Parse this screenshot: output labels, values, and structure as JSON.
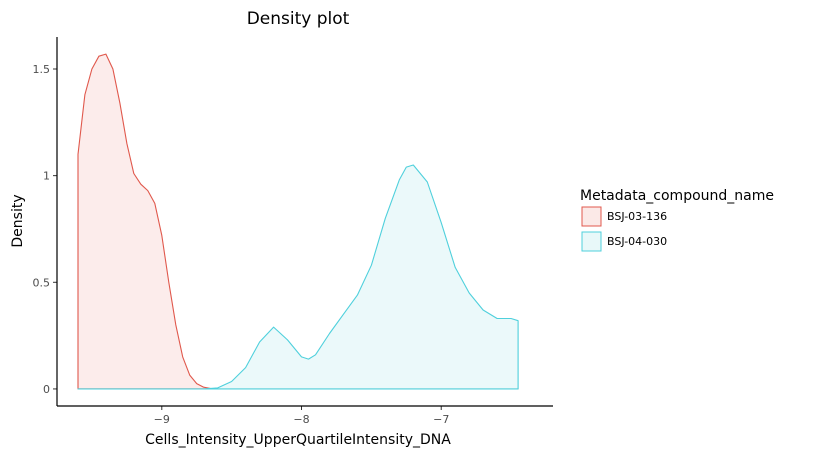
{
  "chart_data": {
    "type": "area",
    "title": "Density plot",
    "xlabel": "Cells_Intensity_UpperQuartileIntensity_DNA",
    "ylabel": "Density",
    "xlim": [
      -9.75,
      -6.2
    ],
    "ylim": [
      -0.08,
      1.65
    ],
    "x_ticks": [
      -9,
      -8,
      -7
    ],
    "x_tick_labels": [
      "−9",
      "−8",
      "−7"
    ],
    "y_ticks": [
      0,
      0.5,
      1,
      1.5
    ],
    "y_tick_labels": [
      "0",
      "0.5",
      "1",
      "1.5"
    ],
    "grid": false,
    "legend": {
      "title": "Metadata_compound_name",
      "position": "right"
    },
    "series": [
      {
        "name": "BSJ-03-136",
        "color": "#e0584c",
        "fill": "#fbe9e7",
        "points": [
          [
            -9.6,
            1.1
          ],
          [
            -9.55,
            1.38
          ],
          [
            -9.5,
            1.5
          ],
          [
            -9.45,
            1.56
          ],
          [
            -9.4,
            1.57
          ],
          [
            -9.35,
            1.5
          ],
          [
            -9.3,
            1.34
          ],
          [
            -9.25,
            1.15
          ],
          [
            -9.2,
            1.01
          ],
          [
            -9.15,
            0.96
          ],
          [
            -9.1,
            0.93
          ],
          [
            -9.05,
            0.87
          ],
          [
            -9.0,
            0.72
          ],
          [
            -8.95,
            0.5
          ],
          [
            -8.9,
            0.3
          ],
          [
            -8.85,
            0.15
          ],
          [
            -8.8,
            0.065
          ],
          [
            -8.75,
            0.025
          ],
          [
            -8.7,
            0.008
          ],
          [
            -8.65,
            0.002
          ],
          [
            -8.6,
            0
          ],
          [
            -8.0,
            0
          ],
          [
            -7.0,
            0
          ],
          [
            -6.45,
            0
          ]
        ]
      },
      {
        "name": "BSJ-04-030",
        "color": "#4fd0dc",
        "fill": "#e8f8f9",
        "points": [
          [
            -9.6,
            0
          ],
          [
            -9.0,
            0
          ],
          [
            -8.7,
            0
          ],
          [
            -8.6,
            0.005
          ],
          [
            -8.5,
            0.035
          ],
          [
            -8.4,
            0.1
          ],
          [
            -8.3,
            0.22
          ],
          [
            -8.2,
            0.29
          ],
          [
            -8.1,
            0.23
          ],
          [
            -8.0,
            0.15
          ],
          [
            -7.95,
            0.14
          ],
          [
            -7.9,
            0.16
          ],
          [
            -7.8,
            0.26
          ],
          [
            -7.7,
            0.35
          ],
          [
            -7.6,
            0.44
          ],
          [
            -7.5,
            0.58
          ],
          [
            -7.4,
            0.8
          ],
          [
            -7.3,
            0.98
          ],
          [
            -7.25,
            1.04
          ],
          [
            -7.2,
            1.05
          ],
          [
            -7.1,
            0.97
          ],
          [
            -7.0,
            0.78
          ],
          [
            -6.9,
            0.57
          ],
          [
            -6.8,
            0.45
          ],
          [
            -6.7,
            0.37
          ],
          [
            -6.6,
            0.33
          ],
          [
            -6.5,
            0.33
          ],
          [
            -6.45,
            0.32
          ]
        ]
      }
    ]
  }
}
